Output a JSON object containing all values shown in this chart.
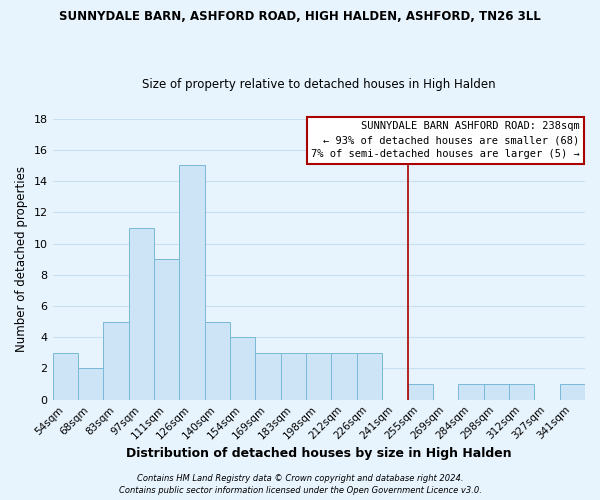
{
  "title": "SUNNYDALE BARN, ASHFORD ROAD, HIGH HALDEN, ASHFORD, TN26 3LL",
  "subtitle": "Size of property relative to detached houses in High Halden",
  "xlabel": "Distribution of detached houses by size in High Halden",
  "ylabel": "Number of detached properties",
  "bar_color": "#cce4f5",
  "bar_edgecolor": "#7ab8d9",
  "background_color": "#e8f4fd",
  "grid_color": "#c8dff0",
  "bin_labels": [
    "54sqm",
    "68sqm",
    "83sqm",
    "97sqm",
    "111sqm",
    "126sqm",
    "140sqm",
    "154sqm",
    "169sqm",
    "183sqm",
    "198sqm",
    "212sqm",
    "226sqm",
    "241sqm",
    "255sqm",
    "269sqm",
    "284sqm",
    "298sqm",
    "312sqm",
    "327sqm",
    "341sqm"
  ],
  "values": [
    3,
    2,
    5,
    11,
    9,
    15,
    5,
    4,
    3,
    3,
    3,
    3,
    3,
    0,
    1,
    0,
    1,
    1,
    1,
    0,
    1
  ],
  "ylim": [
    0,
    18
  ],
  "yticks": [
    0,
    2,
    4,
    6,
    8,
    10,
    12,
    14,
    16,
    18
  ],
  "vline_x": 13.5,
  "vline_color": "#aa0000",
  "annotation_title": "SUNNYDALE BARN ASHFORD ROAD: 238sqm",
  "annotation_line1": "← 93% of detached houses are smaller (68)",
  "annotation_line2": "7% of semi-detached houses are larger (5) →",
  "footnote1": "Contains HM Land Registry data © Crown copyright and database right 2024.",
  "footnote2": "Contains public sector information licensed under the Open Government Licence v3.0."
}
